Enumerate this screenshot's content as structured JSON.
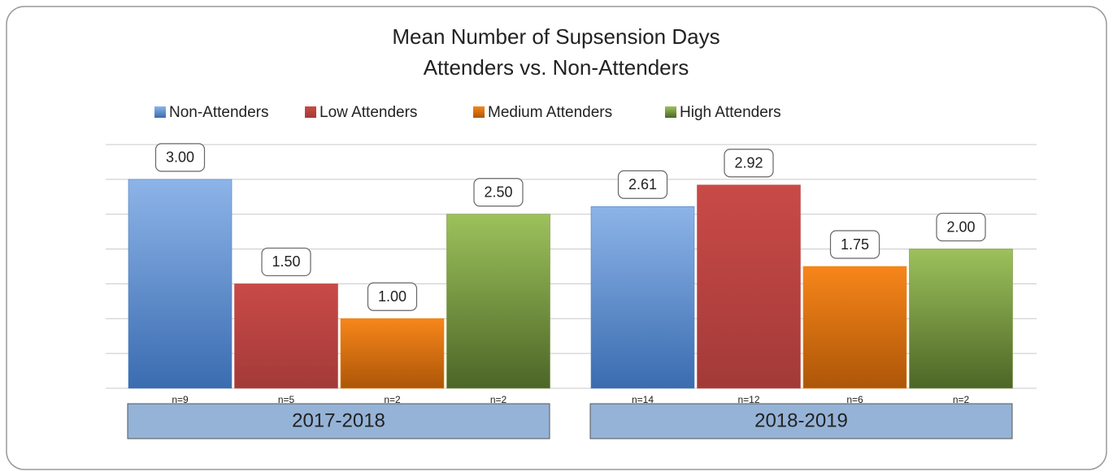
{
  "chart_data": {
    "type": "bar",
    "title": [
      "Mean Number of Supsension Days",
      "Attenders vs. Non-Attenders"
    ],
    "categories": [
      "2017-2018",
      "2018-2019"
    ],
    "series": [
      {
        "name": "Non-Attenders",
        "color": "#4f81bd",
        "values": [
          3.0,
          2.61
        ],
        "value_labels": [
          "3.00",
          "2.61"
        ],
        "sample_labels": [
          "n=9",
          "n=14"
        ]
      },
      {
        "name": "Low Attenders",
        "color": "#c0504d",
        "values": [
          1.5,
          2.92
        ],
        "value_labels": [
          "1.50",
          "2.92"
        ],
        "sample_labels": [
          "n=5",
          "n=12"
        ]
      },
      {
        "name": "Medium Attenders",
        "color": "#f0820f",
        "values": [
          1.0,
          1.75
        ],
        "value_labels": [
          "1.00",
          "1.75"
        ],
        "sample_labels": [
          "n=2",
          "n=6"
        ]
      },
      {
        "name": "High Attenders",
        "color": "#77933c",
        "values": [
          2.5,
          2.0
        ],
        "value_labels": [
          "2.50",
          "2.00"
        ],
        "sample_labels": [
          "n=2",
          "n=2"
        ]
      }
    ],
    "ylim": [
      0,
      3.5
    ],
    "yticks": [
      0,
      0.5,
      1,
      1.5,
      2,
      2.5,
      3,
      3.5
    ],
    "grid": true,
    "legend": "top"
  }
}
